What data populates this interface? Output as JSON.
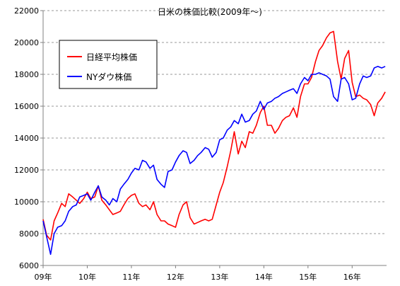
{
  "chart_data": {
    "type": "line",
    "title": "日米の株価比較(2009年〜)",
    "xlabel": "",
    "ylabel": "",
    "ylim": [
      6000,
      22000
    ],
    "yticks": [
      6000,
      8000,
      10000,
      12000,
      14000,
      16000,
      18000,
      20000,
      22000
    ],
    "ytick_labels": [
      "6000",
      "8000",
      "10000",
      "12000",
      "14000",
      "16000",
      "18000",
      "20000",
      "22000"
    ],
    "xlim": [
      2009.0,
      2016.78
    ],
    "xticks": [
      2009,
      2010,
      2011,
      2012,
      2013,
      2014,
      2015,
      2016
    ],
    "xtick_labels": [
      "09年",
      "10年",
      "11年",
      "12年",
      "13年",
      "14年",
      "15年",
      "16年"
    ],
    "grid": "horizontal dashed",
    "legend_position": "top-left",
    "series": [
      {
        "name": "日経平均株価",
        "color": "#ff0000",
        "x": [
          2009.0,
          2009.08,
          2009.17,
          2009.25,
          2009.33,
          2009.42,
          2009.5,
          2009.58,
          2009.67,
          2009.75,
          2009.83,
          2009.92,
          2010.0,
          2010.08,
          2010.17,
          2010.25,
          2010.33,
          2010.42,
          2010.5,
          2010.58,
          2010.67,
          2010.75,
          2010.83,
          2010.92,
          2011.0,
          2011.08,
          2011.17,
          2011.25,
          2011.33,
          2011.42,
          2011.5,
          2011.58,
          2011.67,
          2011.75,
          2011.83,
          2011.92,
          2012.0,
          2012.08,
          2012.17,
          2012.25,
          2012.33,
          2012.42,
          2012.5,
          2012.58,
          2012.67,
          2012.75,
          2012.83,
          2012.92,
          2013.0,
          2013.08,
          2013.17,
          2013.25,
          2013.33,
          2013.42,
          2013.5,
          2013.58,
          2013.67,
          2013.75,
          2013.83,
          2013.92,
          2014.0,
          2014.08,
          2014.17,
          2014.25,
          2014.33,
          2014.42,
          2014.5,
          2014.58,
          2014.67,
          2014.75,
          2014.83,
          2014.92,
          2015.0,
          2015.08,
          2015.17,
          2015.25,
          2015.33,
          2015.42,
          2015.5,
          2015.58,
          2015.67,
          2015.75,
          2015.83,
          2015.92,
          2016.0,
          2016.08,
          2016.17,
          2016.25,
          2016.33,
          2016.42,
          2016.5,
          2016.58,
          2016.67,
          2016.75
        ],
        "values": [
          8900,
          7900,
          7600,
          8800,
          9300,
          9900,
          9700,
          10500,
          10300,
          10100,
          9900,
          10200,
          10600,
          10200,
          10300,
          11000,
          10100,
          9800,
          9500,
          9200,
          9300,
          9400,
          9800,
          10200,
          10400,
          10500,
          9900,
          9700,
          9800,
          9500,
          10000,
          9200,
          8800,
          8800,
          8600,
          8500,
          8400,
          9200,
          9800,
          10000,
          9000,
          8600,
          8700,
          8800,
          8900,
          8800,
          8900,
          9800,
          10600,
          11200,
          12200,
          13200,
          14400,
          13000,
          13800,
          13400,
          14400,
          14300,
          14800,
          15600,
          16000,
          14800,
          14800,
          14300,
          14600,
          15100,
          15300,
          15400,
          15900,
          15300,
          16600,
          17400,
          17400,
          17800,
          18800,
          19500,
          19800,
          20300,
          20600,
          20700,
          18800,
          17700,
          19000,
          19500,
          17500,
          16600,
          16700,
          16500,
          16400,
          16100,
          15400,
          16200,
          16500,
          16900
        ]
      },
      {
        "name": "NYダウ株価",
        "color": "#0000ff",
        "x": [
          2009.0,
          2009.08,
          2009.17,
          2009.25,
          2009.33,
          2009.42,
          2009.5,
          2009.58,
          2009.67,
          2009.75,
          2009.83,
          2009.92,
          2010.0,
          2010.08,
          2010.17,
          2010.25,
          2010.33,
          2010.42,
          2010.5,
          2010.58,
          2010.67,
          2010.75,
          2010.83,
          2010.92,
          2011.0,
          2011.08,
          2011.17,
          2011.25,
          2011.33,
          2011.42,
          2011.5,
          2011.58,
          2011.67,
          2011.75,
          2011.83,
          2011.92,
          2012.0,
          2012.08,
          2012.17,
          2012.25,
          2012.33,
          2012.42,
          2012.5,
          2012.58,
          2012.67,
          2012.75,
          2012.83,
          2012.92,
          2013.0,
          2013.08,
          2013.17,
          2013.25,
          2013.33,
          2013.42,
          2013.5,
          2013.58,
          2013.67,
          2013.75,
          2013.83,
          2013.92,
          2014.0,
          2014.08,
          2014.17,
          2014.25,
          2014.33,
          2014.42,
          2014.5,
          2014.58,
          2014.67,
          2014.75,
          2014.83,
          2014.92,
          2015.0,
          2015.08,
          2015.17,
          2015.25,
          2015.33,
          2015.42,
          2015.5,
          2015.58,
          2015.67,
          2015.75,
          2015.83,
          2015.92,
          2016.0,
          2016.08,
          2016.17,
          2016.25,
          2016.33,
          2016.42,
          2016.5,
          2016.58,
          2016.67,
          2016.75
        ],
        "values": [
          8800,
          7800,
          6700,
          8000,
          8400,
          8500,
          8800,
          9400,
          9700,
          9800,
          10300,
          10400,
          10500,
          10100,
          10600,
          11000,
          10300,
          10100,
          9800,
          10200,
          10000,
          10800,
          11100,
          11400,
          11800,
          12100,
          12000,
          12600,
          12500,
          12100,
          12300,
          11400,
          11100,
          10900,
          11900,
          12000,
          12500,
          12900,
          13200,
          13100,
          12400,
          12600,
          12900,
          13100,
          13400,
          13300,
          12800,
          13100,
          13900,
          14000,
          14500,
          14700,
          15100,
          14900,
          15500,
          15000,
          15100,
          15500,
          15700,
          16300,
          15800,
          16200,
          16300,
          16500,
          16600,
          16800,
          16900,
          17000,
          17100,
          16800,
          17400,
          17800,
          17600,
          18000,
          18000,
          18100,
          18000,
          17900,
          17700,
          16600,
          16300,
          17700,
          17800,
          17400,
          16400,
          16500,
          17400,
          17900,
          17800,
          17900,
          18400,
          18500,
          18400,
          18500
        ]
      }
    ]
  }
}
